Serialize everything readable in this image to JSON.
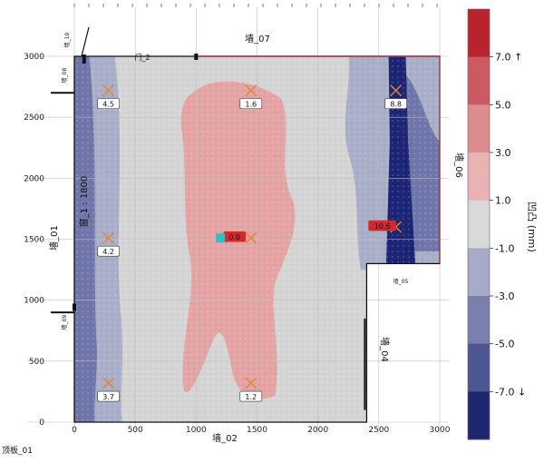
{
  "chart_data": {
    "type": "heatmap",
    "xlim": [
      0,
      3000
    ],
    "ylim": [
      0,
      3000
    ],
    "x_ticks": [
      "0",
      "500",
      "1000",
      "1500",
      "2000",
      "2500",
      "3000"
    ],
    "y_ticks": [
      "0",
      "500",
      "1000",
      "1500",
      "2000",
      "2500",
      "3000"
    ],
    "grid": true,
    "floor_outline": [
      [
        0,
        0
      ],
      [
        2400,
        0
      ],
      [
        2400,
        1300
      ],
      [
        3000,
        1300
      ],
      [
        3000,
        3000
      ],
      [
        0,
        3000
      ]
    ],
    "measure_points": [
      {
        "x": 280,
        "y": 2720,
        "value": "4.5",
        "highlight": false
      },
      {
        "x": 1450,
        "y": 2720,
        "value": "1.6",
        "highlight": false
      },
      {
        "x": 2640,
        "y": 2720,
        "value": "8.8",
        "highlight": false
      },
      {
        "x": 280,
        "y": 1510,
        "value": "4.2",
        "highlight": false
      },
      {
        "x": 1450,
        "y": 1510,
        "value": "0.0",
        "highlight": true
      },
      {
        "x": 2640,
        "y": 1600,
        "value": "10.6",
        "highlight": true
      },
      {
        "x": 280,
        "y": 320,
        "value": "3.7",
        "highlight": false
      },
      {
        "x": 1450,
        "y": 320,
        "value": "1.2",
        "highlight": false
      }
    ],
    "wall_labels": {
      "top": "墙_07",
      "bottom": "墙_02",
      "left": "墙_01",
      "right": "墙_06",
      "door": "门_2",
      "window": "窗_1 : 1800",
      "right_lower": "墙_04",
      "left_small_top": "墙_08",
      "left_small_bottom": "墙_09",
      "right_small": "墙_05",
      "corner_small": "墙_10"
    },
    "floor_label": "顶板_01",
    "colorbar": {
      "label": "凹凸 (mm)",
      "tick_labels": [
        "7.0 ↑",
        "5.0",
        "3.0",
        "1.0",
        "-1.0",
        "-3.0",
        "-5.0",
        "-7.0 ↓"
      ],
      "band_colors": [
        "#b8232e",
        "#cc5a63",
        "#dc8c8f",
        "#e8b3b2",
        "#d9d9d9",
        "#a8abc8",
        "#7a7fae",
        "#4f5592",
        "#1f2670"
      ]
    },
    "colors": {
      "grey": "#d5d5d5",
      "pink": "#e3a4a3",
      "light_blue": "#a9aec9",
      "blue": "#6f76aa",
      "dark_blue": "#1c2675",
      "marker": "#e8842e",
      "highlight": "#d4282f",
      "outline": "#111111"
    }
  }
}
